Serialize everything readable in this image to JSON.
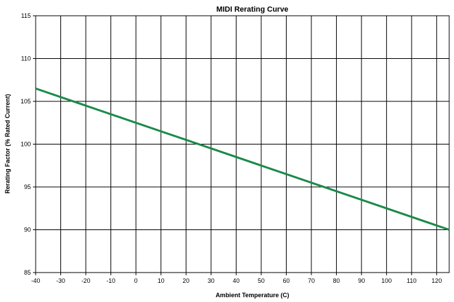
{
  "chart_data": {
    "type": "line",
    "title": "MIDI Rerating Curve",
    "xlabel": "Ambient Temperature (C)",
    "ylabel": "Rerating Factor (% Rated Current)",
    "xlim": [
      -40,
      125
    ],
    "ylim": [
      85,
      115
    ],
    "xticks": [
      "-40",
      "-30",
      "-20",
      "-10",
      "0",
      "10",
      "20",
      "30",
      "40",
      "50",
      "60",
      "70",
      "80",
      "90",
      "100",
      "110",
      "120"
    ],
    "yticks": [
      "85",
      "90",
      "95",
      "100",
      "105",
      "110",
      "115"
    ],
    "grid": true,
    "series": [
      {
        "color": "#1a8a4a",
        "x": [
          -40,
          125
        ],
        "y": [
          106.5,
          90
        ]
      }
    ]
  }
}
